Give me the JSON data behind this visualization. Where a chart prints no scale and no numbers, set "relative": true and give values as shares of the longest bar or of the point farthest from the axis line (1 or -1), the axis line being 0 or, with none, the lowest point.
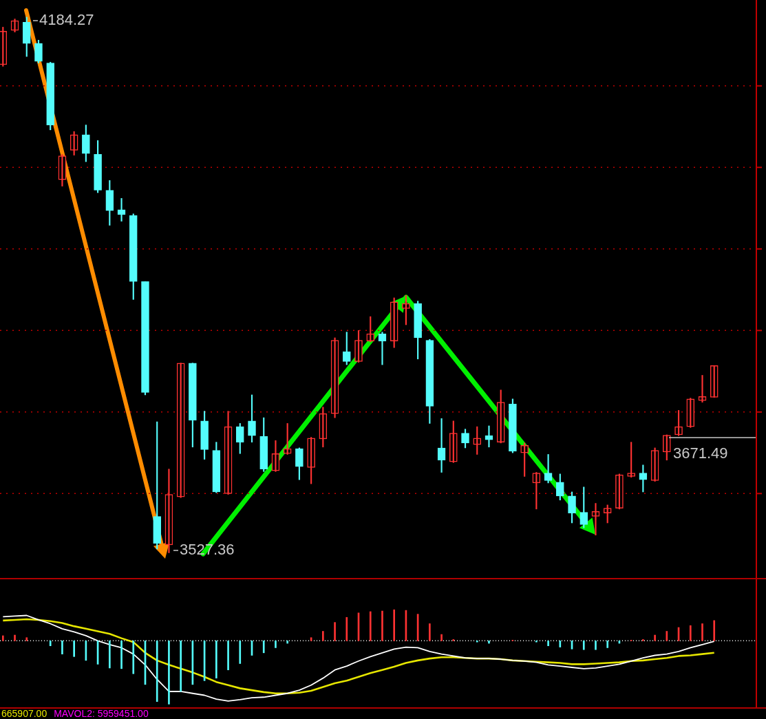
{
  "chart_data": [
    {
      "type": "candlestick",
      "categories": [
        null,
        null,
        null,
        null,
        null,
        null,
        null,
        null,
        null,
        null,
        null,
        null,
        null,
        null,
        null,
        null,
        null,
        null,
        null,
        null,
        null,
        null,
        null,
        null,
        null,
        null,
        null,
        null,
        null,
        null,
        null,
        null,
        null,
        null,
        null,
        null,
        null,
        null,
        null,
        null,
        null,
        null,
        null,
        null,
        null,
        null,
        null,
        null,
        null,
        null,
        null,
        null,
        null,
        null,
        null,
        null,
        null,
        null,
        null,
        null,
        null
      ],
      "ohlc": [
        [
          4126,
          4172,
          4124,
          4167
        ],
        [
          4168,
          4182,
          4166,
          4180
        ],
        [
          4178,
          4184.27,
          4136,
          4152
        ],
        [
          4152,
          4156,
          4128,
          4130
        ],
        [
          4128,
          4129,
          4046,
          4052
        ],
        [
          3985,
          4016,
          3977,
          4014
        ],
        [
          4021,
          4044,
          4015,
          4040
        ],
        [
          4040,
          4052,
          4007,
          4017
        ],
        [
          4016,
          4033,
          3969,
          3972
        ],
        [
          3972,
          3984,
          3929,
          3947
        ],
        [
          3948,
          3962,
          3934,
          3942
        ],
        [
          3941,
          3943,
          3838,
          3860
        ],
        [
          3860,
          3860,
          3721,
          3724
        ],
        [
          3572,
          3688,
          3532,
          3539
        ],
        [
          3537,
          3630,
          3527.36,
          3599
        ],
        [
          3596,
          3760,
          3595,
          3760
        ],
        [
          3760,
          3760,
          3657,
          3690
        ],
        [
          3689,
          3701,
          3642,
          3654
        ],
        [
          3653,
          3663,
          3601,
          3602
        ],
        [
          3600,
          3701,
          3599,
          3682
        ],
        [
          3682,
          3686,
          3649,
          3663
        ],
        [
          3689,
          3721,
          3663,
          3671
        ],
        [
          3670,
          3693,
          3627,
          3630
        ],
        [
          3628,
          3665,
          3627,
          3649
        ],
        [
          3649,
          3686,
          3648,
          3655
        ],
        [
          3655,
          3656,
          3617,
          3633
        ],
        [
          3632,
          3669,
          3612,
          3668
        ],
        [
          3667,
          3706,
          3657,
          3698
        ],
        [
          3698,
          3791,
          3693,
          3788
        ],
        [
          3774,
          3798,
          3758,
          3762
        ],
        [
          3762,
          3800,
          3761,
          3788
        ],
        [
          3787,
          3817,
          3786,
          3796
        ],
        [
          3796,
          3798,
          3758,
          3787
        ],
        [
          3787,
          3840,
          3779,
          3835
        ],
        [
          3827,
          3843,
          3807,
          3833
        ],
        [
          3833,
          3836,
          3765,
          3791
        ],
        [
          3788,
          3789,
          3686,
          3707
        ],
        [
          3656,
          3692,
          3626,
          3641
        ],
        [
          3639,
          3689,
          3638,
          3674
        ],
        [
          3674,
          3679,
          3656,
          3662
        ],
        [
          3660,
          3682,
          3648,
          3668
        ],
        [
          3671,
          3683,
          3657,
          3666
        ],
        [
          3663,
          3727,
          3662,
          3712
        ],
        [
          3710,
          3716,
          3650,
          3652
        ],
        [
          3650,
          3662,
          3621,
          3659
        ],
        [
          3613,
          3626,
          3581,
          3625
        ],
        [
          3625,
          3648,
          3613,
          3616
        ],
        [
          3614,
          3624,
          3592,
          3597
        ],
        [
          3597,
          3602,
          3564,
          3576
        ],
        [
          3577,
          3608,
          3558,
          3562
        ],
        [
          3572,
          3588,
          3549,
          3578
        ],
        [
          3576,
          3586,
          3564,
          3582
        ],
        [
          3582,
          3624,
          3581,
          3623
        ],
        [
          3621,
          3663,
          3620,
          3625
        ],
        [
          3625,
          3635,
          3602,
          3617
        ],
        [
          3616,
          3656,
          3615,
          3653
        ],
        [
          3651,
          3672,
          3641,
          3671.49
        ],
        [
          3672,
          3702,
          3671,
          3682
        ],
        [
          3682,
          3717,
          3681,
          3716
        ],
        [
          3714,
          3745,
          3712,
          3719
        ],
        [
          3718,
          3757,
          3718,
          3757
        ]
      ],
      "colors": [
        "#ff3232",
        "#ff3232",
        "#54fcfc",
        "#54fcfc",
        "#54fcfc",
        "#ff3232",
        "#ff3232",
        "#54fcfc",
        "#54fcfc",
        "#54fcfc",
        "#54fcfc",
        "#54fcfc",
        "#54fcfc",
        "#54fcfc",
        "#ff3232",
        "#ff3232",
        "#54fcfc",
        "#54fcfc",
        "#54fcfc",
        "#ff3232",
        "#54fcfc",
        "#54fcfc",
        "#54fcfc",
        "#ff3232",
        "#ff3232",
        "#54fcfc",
        "#ff3232",
        "#ff3232",
        "#ff3232",
        "#54fcfc",
        "#ff3232",
        "#ff3232",
        "#54fcfc",
        "#ff3232",
        "#ff3232",
        "#54fcfc",
        "#54fcfc",
        "#54fcfc",
        "#ff3232",
        "#54fcfc",
        "#ff3232",
        "#54fcfc",
        "#ff3232",
        "#54fcfc",
        "#ff3232",
        "#ff3232",
        "#54fcfc",
        "#54fcfc",
        "#54fcfc",
        "#54fcfc",
        "#ff3232",
        "#ff3232",
        "#ff3232",
        "#ff3232",
        "#54fcfc",
        "#ff3232",
        "#ff3232",
        "#ff3232",
        "#ff3232",
        "#ff3232",
        "#ff3232"
      ],
      "yticks": [
        {
          "value": 3600,
          "label": null
        },
        {
          "value": 3700,
          "label": null
        },
        {
          "value": 3800,
          "label": null
        },
        {
          "value": 3900,
          "label": null
        },
        {
          "value": 4000,
          "label": null
        },
        {
          "value": 4100,
          "label": null
        }
      ],
      "grid": "y",
      "annotations": [
        "4184.27",
        "3527.36",
        "3671.49"
      ]
    },
    {
      "type": "bar",
      "relative": true,
      "categories": [
        null,
        null,
        null,
        null,
        null,
        null,
        null,
        null,
        null,
        null,
        null,
        null,
        null,
        null,
        null,
        null,
        null,
        null,
        null,
        null,
        null,
        null,
        null,
        null,
        null,
        null,
        null,
        null,
        null,
        null,
        null,
        null,
        null,
        null,
        null,
        null,
        null,
        null,
        null,
        null,
        null,
        null,
        null,
        null,
        null,
        null,
        null,
        null,
        null,
        null,
        null,
        null,
        null,
        null,
        null,
        null,
        null,
        null,
        null,
        null,
        null
      ],
      "series": [
        {
          "type": "bar",
          "values": [
            0.08,
            0.09,
            0.05,
            null,
            -0.08,
            -0.21,
            -0.25,
            -0.31,
            -0.37,
            -0.43,
            -0.44,
            -0.52,
            -0.69,
            -0.96,
            -1,
            -0.8,
            -0.69,
            -0.63,
            -0.59,
            -0.46,
            -0.36,
            -0.23,
            -0.19,
            -0.11,
            -0.04,
            null,
            0.05,
            0.15,
            0.29,
            0.37,
            0.44,
            0.46,
            0.47,
            0.49,
            0.48,
            0.42,
            0.27,
            0.1,
            0.02,
            null,
            -0.02,
            -0.04,
            null,
            0.01,
            null,
            -0.02,
            -0.08,
            -0.1,
            -0.13,
            -0.14,
            -0.14,
            -0.11,
            -0.04,
            0.01,
            0.02,
            0.09,
            0.15,
            0.21,
            0.24,
            0.27,
            0.32
          ],
          "colors": [
            "#ff3232",
            "#ff3232",
            "#ff3232",
            "#ff3232",
            "#54fcfc",
            "#54fcfc",
            "#54fcfc",
            "#54fcfc",
            "#54fcfc",
            "#54fcfc",
            "#54fcfc",
            "#54fcfc",
            "#54fcfc",
            "#54fcfc",
            "#54fcfc",
            "#54fcfc",
            "#54fcfc",
            "#54fcfc",
            "#54fcfc",
            "#54fcfc",
            "#54fcfc",
            "#54fcfc",
            "#54fcfc",
            "#54fcfc",
            "#54fcfc",
            "#ff3232",
            "#ff3232",
            "#ff3232",
            "#ff3232",
            "#ff3232",
            "#ff3232",
            "#ff3232",
            "#ff3232",
            "#ff3232",
            "#ff3232",
            "#ff3232",
            "#ff3232",
            "#ff3232",
            "#ff3232",
            "#ff3232",
            "#54fcfc",
            "#54fcfc",
            "#ff3232",
            "#ff3232",
            "#ff3232",
            "#54fcfc",
            "#54fcfc",
            "#54fcfc",
            "#54fcfc",
            "#54fcfc",
            "#54fcfc",
            "#54fcfc",
            "#54fcfc",
            "#ff3232",
            "#ff3232",
            "#ff3232",
            "#ff3232",
            "#ff3232",
            "#ff3232",
            "#ff3232",
            "#ff3232"
          ]
        },
        {
          "type": "line",
          "color": "#ffffff",
          "values": [
            0.38,
            0.39,
            0.4,
            0.33,
            0.27,
            0.19,
            0.14,
            0.08,
            0,
            -0.06,
            -0.11,
            -0.21,
            -0.38,
            -0.61,
            -0.8,
            -0.8,
            -0.83,
            -0.86,
            -0.92,
            -0.95,
            -0.93,
            -0.9,
            -0.89,
            -0.86,
            -0.83,
            -0.78,
            -0.7,
            -0.59,
            -0.46,
            -0.4,
            -0.32,
            -0.25,
            -0.19,
            -0.13,
            -0.1,
            -0.11,
            -0.17,
            -0.21,
            -0.24,
            -0.27,
            -0.28,
            -0.28,
            -0.29,
            -0.31,
            -0.32,
            -0.34,
            -0.38,
            -0.4,
            -0.42,
            -0.44,
            -0.43,
            -0.4,
            -0.37,
            -0.32,
            -0.27,
            -0.23,
            -0.21,
            -0.17,
            -0.11,
            -0.06,
            -0.01
          ]
        },
        {
          "type": "line",
          "color": "#e6e600",
          "values": [
            0.32,
            0.33,
            0.34,
            0.33,
            0.31,
            0.28,
            0.23,
            0.19,
            0.15,
            0.11,
            0.04,
            -0.02,
            -0.19,
            -0.31,
            -0.38,
            -0.44,
            -0.5,
            -0.57,
            -0.65,
            -0.7,
            -0.75,
            -0.78,
            -0.81,
            -0.83,
            -0.83,
            -0.82,
            -0.79,
            -0.73,
            -0.67,
            -0.63,
            -0.57,
            -0.51,
            -0.46,
            -0.41,
            -0.35,
            -0.31,
            -0.28,
            -0.26,
            -0.26,
            -0.27,
            -0.28,
            -0.28,
            -0.29,
            -0.31,
            -0.32,
            -0.33,
            -0.34,
            -0.35,
            -0.37,
            -0.37,
            -0.36,
            -0.35,
            -0.34,
            -0.32,
            -0.31,
            -0.29,
            -0.27,
            -0.24,
            -0.23,
            -0.21,
            -0.19
          ]
        }
      ],
      "ref_lines": [
        {
          "axis": "y",
          "value": 0,
          "color": "#ffffff",
          "line_style": "dotted"
        }
      ],
      "annotations": [
        "665907.00",
        "MAVOL2: 5959451.00"
      ]
    }
  ]
}
